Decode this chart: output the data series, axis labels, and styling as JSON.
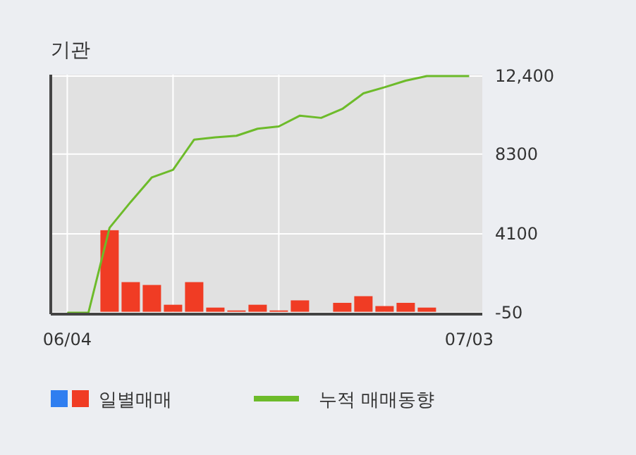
{
  "chart_data": {
    "type": "bar",
    "title": "기관",
    "categories": [
      "06/04",
      null,
      null,
      null,
      null,
      null,
      null,
      null,
      null,
      null,
      null,
      null,
      null,
      null,
      null,
      null,
      null,
      null,
      null,
      "07/03"
    ],
    "series": [
      {
        "name": "일별매매",
        "color": "#f03c24",
        "values": [
          null,
          null,
          4290,
          1560,
          1410,
          370,
          1560,
          220,
          70,
          370,
          70,
          600,
          null,
          470,
          820,
          300,
          470,
          220,
          null,
          null
        ]
      },
      {
        "name": "누적 매매동향",
        "type": "line",
        "color": "#6dbb2a",
        "values": [
          -50,
          -50,
          4420,
          5780,
          7070,
          7470,
          9060,
          9180,
          9260,
          9630,
          9750,
          10320,
          10200,
          10670,
          11490,
          11810,
          12160,
          12400,
          12400,
          12400
        ]
      }
    ],
    "ylim": [
      -50,
      12400
    ],
    "yticks": [
      -50,
      4100,
      8300,
      {
        "value": 12400,
        "label": "12,400"
      }
    ],
    "grid": true,
    "legend": "bottom"
  }
}
